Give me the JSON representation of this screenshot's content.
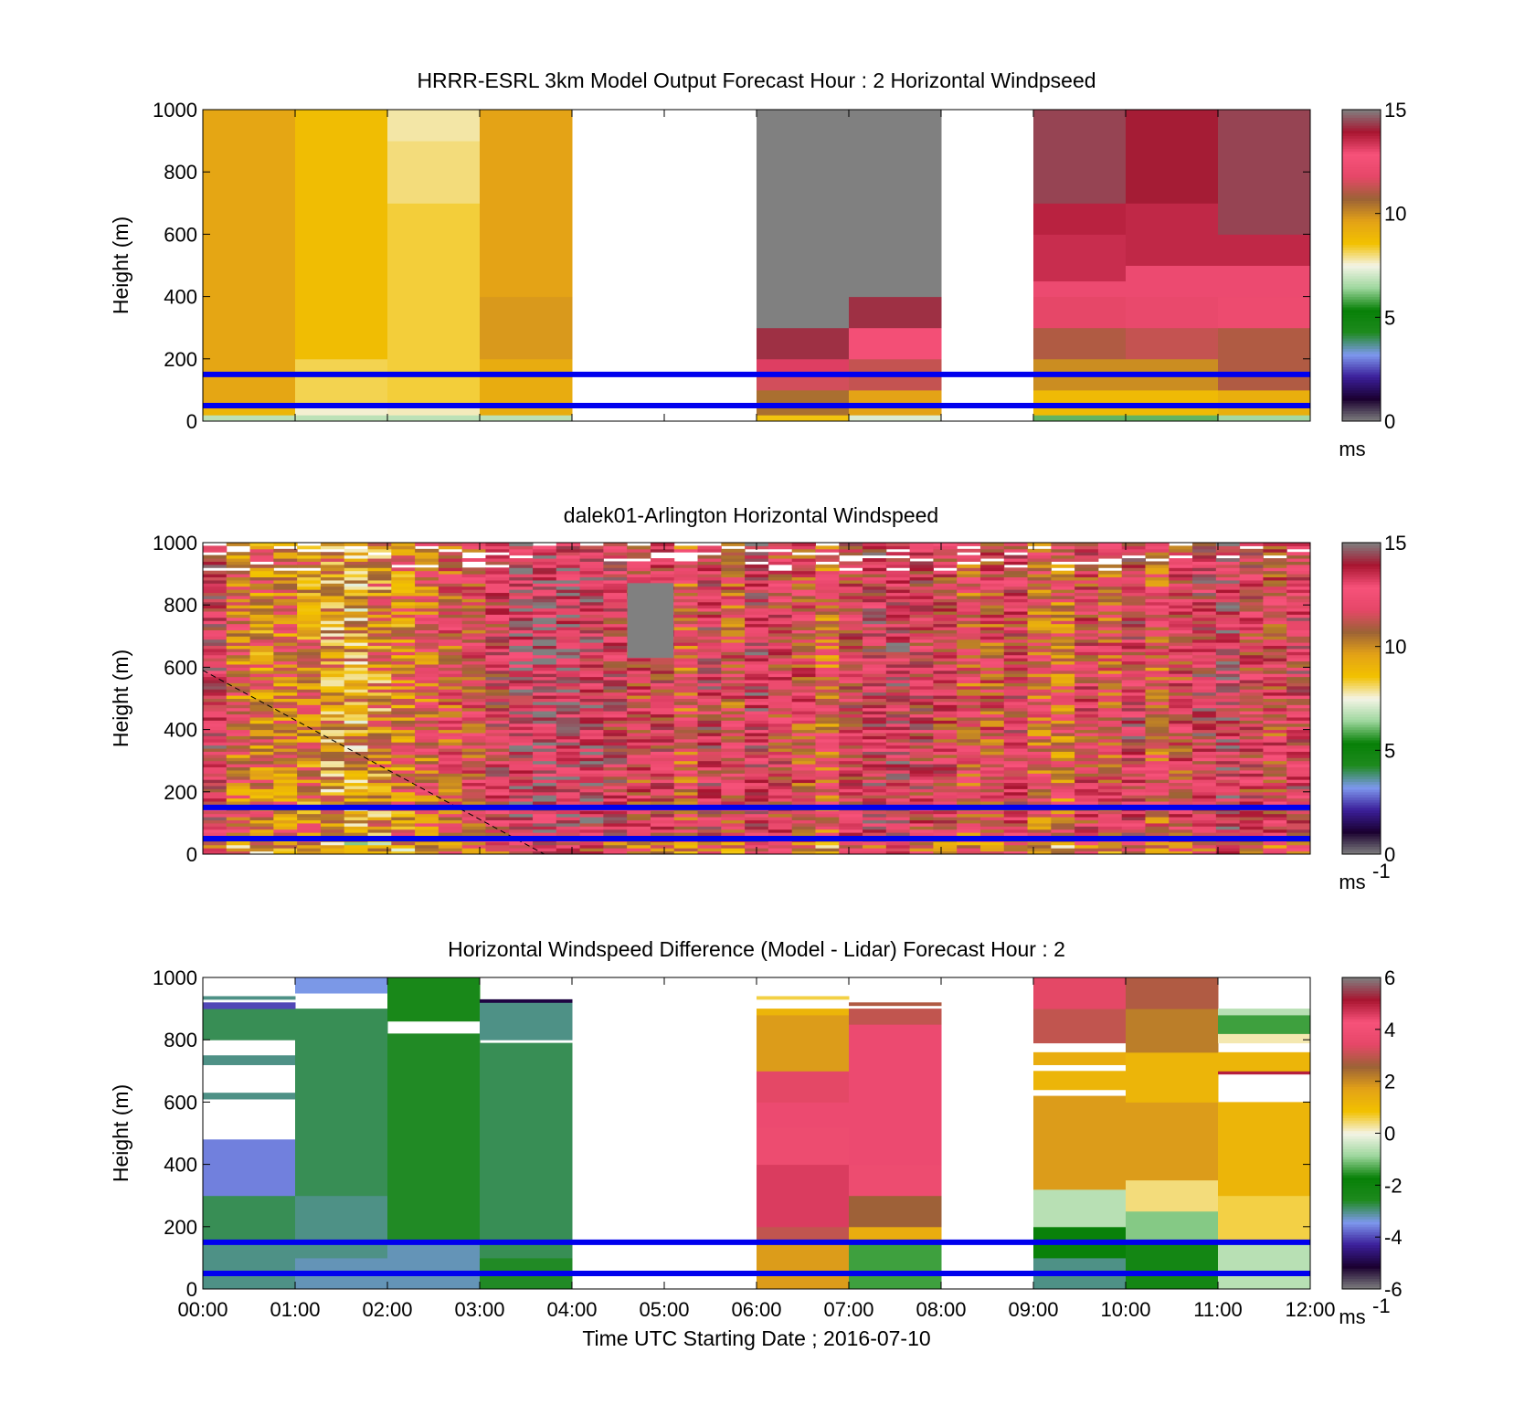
{
  "colors": {
    "overlay_line": "#0000ee",
    "masked_cell": "#808080",
    "background": "#ffffff",
    "scale_windspeed": [
      "#808080",
      "#1a0030",
      "#3b1f9a",
      "#7e98ee",
      "#1e8a1e",
      "#078007",
      "#9ed79e",
      "#f4f4e6",
      "#f2c100",
      "#e3a217",
      "#9c6236",
      "#e64768",
      "#f7527a",
      "#a81530",
      "#808080"
    ],
    "scale_difference": [
      "#808080",
      "#1a0030",
      "#3b1f9a",
      "#7e98ee",
      "#1e8a1e",
      "#078007",
      "#9ed79e",
      "#f4f4e6",
      "#f2c100",
      "#e3a217",
      "#9c6236",
      "#e64768",
      "#f7527a",
      "#a81530",
      "#808080"
    ]
  },
  "x_axis": {
    "ticks": [
      "00:00",
      "01:00",
      "02:00",
      "03:00",
      "04:00",
      "05:00",
      "06:00",
      "07:00",
      "08:00",
      "09:00",
      "10:00",
      "11:00",
      "12:00"
    ],
    "label": "Time UTC  Starting Date ; 2016-07-10"
  },
  "chart_data": [
    {
      "type": "heatmap",
      "title": "HRRR-ESRL 3km Model Output   Forecast Hour : 2 Horizontal Windpseed",
      "ylabel": "Height (m)",
      "ylim": [
        0,
        1000
      ],
      "yticks": [
        "0",
        "200",
        "400",
        "600",
        "800",
        "1000"
      ],
      "colorbar": {
        "ticks": [
          "0",
          "5",
          "10",
          "15"
        ],
        "range": [
          0,
          15
        ],
        "unit": "ms",
        "unit_sup": "",
        "scale": "windspeed"
      },
      "overlay_lines_height_m": [
        50,
        150
      ],
      "columns": [
        {
          "t_start": 0,
          "t_end": 1,
          "bands": [
            [
              0,
              20,
              6.8
            ],
            [
              20,
              40,
              9.0
            ],
            [
              40,
              1000,
              9.5
            ]
          ]
        },
        {
          "t_start": 1,
          "t_end": 2,
          "bands": [
            [
              0,
              20,
              6.8
            ],
            [
              20,
              60,
              7.6
            ],
            [
              60,
              200,
              8.2
            ],
            [
              200,
              1000,
              8.7
            ]
          ]
        },
        {
          "t_start": 2,
          "t_end": 3,
          "bands": [
            [
              0,
              20,
              6.8
            ],
            [
              20,
              60,
              7.7
            ],
            [
              60,
              700,
              8.3
            ],
            [
              700,
              900,
              8.0
            ],
            [
              900,
              1000,
              7.8
            ]
          ]
        },
        {
          "t_start": 3,
          "t_end": 4,
          "bands": [
            [
              0,
              20,
              6.8
            ],
            [
              20,
              200,
              9.3
            ],
            [
              200,
              400,
              9.8
            ],
            [
              400,
              1000,
              9.6
            ]
          ]
        },
        {
          "t_start": 6,
          "t_end": 7,
          "bands": [
            [
              0,
              20,
              8.5
            ],
            [
              20,
              100,
              10.5
            ],
            [
              100,
              150,
              11.5
            ],
            [
              150,
              200,
              13.2
            ],
            [
              200,
              300,
              14.2
            ],
            [
              300,
              1000,
              "masked"
            ]
          ]
        },
        {
          "t_start": 7,
          "t_end": 8,
          "bands": [
            [
              0,
              20,
              7.2
            ],
            [
              20,
              100,
              9.6
            ],
            [
              100,
              200,
              11.3
            ],
            [
              200,
              300,
              12.6
            ],
            [
              300,
              400,
              14.2
            ],
            [
              400,
              1000,
              "masked"
            ]
          ]
        },
        {
          "t_start": 9,
          "t_end": 10,
          "bands": [
            [
              0,
              20,
              6.0
            ],
            [
              20,
              100,
              8.8
            ],
            [
              100,
              200,
              10.0
            ],
            [
              200,
              300,
              11.0
            ],
            [
              300,
              400,
              11.8
            ],
            [
              400,
              450,
              13.0
            ],
            [
              450,
              600,
              13.5
            ],
            [
              600,
              700,
              13.7
            ],
            [
              700,
              1000,
              14.4
            ]
          ]
        },
        {
          "t_start": 10,
          "t_end": 11,
          "bands": [
            [
              0,
              20,
              6.0
            ],
            [
              20,
              100,
              8.8
            ],
            [
              100,
              200,
              10.0
            ],
            [
              200,
              300,
              11.3
            ],
            [
              300,
              400,
              12.0
            ],
            [
              400,
              500,
              13.0
            ],
            [
              500,
              700,
              13.6
            ],
            [
              700,
              1000,
              14.0
            ]
          ]
        },
        {
          "t_start": 11,
          "t_end": 12,
          "bands": [
            [
              0,
              20,
              6.5
            ],
            [
              20,
              100,
              9.2
            ],
            [
              100,
              300,
              11.0
            ],
            [
              300,
              400,
              12.2
            ],
            [
              400,
              500,
              13.0
            ],
            [
              500,
              600,
              13.6
            ],
            [
              600,
              1000,
              14.4
            ]
          ]
        }
      ]
    },
    {
      "type": "heatmap",
      "title": "dalek01-Arlington  Horizontal Windspeed",
      "ylabel": "Height (m)",
      "ylim": [
        0,
        1000
      ],
      "yticks": [
        "0",
        "200",
        "400",
        "600",
        "800",
        "1000"
      ],
      "colorbar": {
        "ticks": [
          "0",
          "5",
          "10",
          "15"
        ],
        "range": [
          0,
          15
        ],
        "unit": "ms",
        "unit_sup": "-1",
        "scale": "windspeed"
      },
      "overlay_lines_height_m": [
        50,
        150
      ],
      "dashed_line": {
        "from": [
          0,
          590
        ],
        "to": [
          3.7,
          0
        ]
      },
      "masked_region": {
        "t_start": 4.6,
        "t_end": 5.1,
        "h_start": 630,
        "h_end": 870
      },
      "columns_mean_speed": [
        12.8,
        10.8,
        10.5,
        10.6,
        10.2,
        9.6,
        9.2,
        9.8,
        10.4,
        11.0,
        11.6,
        11.8,
        12.6,
        13.4,
        13.8,
        13.6,
        13.2,
        12.6,
        12.0,
        12.4,
        11.4,
        12.8,
        11.6,
        13.2,
        12.2,
        11.8,
        11.0,
        12.4,
        12.8,
        13.0,
        12.6,
        12.2,
        11.4,
        11.8,
        12.4,
        11.2,
        10.8,
        12.2,
        11.6,
        12.8,
        11.4,
        12.0,
        12.8,
        13.2,
        12.4,
        12.0,
        12.6
      ]
    },
    {
      "type": "heatmap",
      "title": "Horizontal Windspeed Difference (Model - Lidar) Forecast Hour : 2",
      "ylabel": "Height (m)",
      "ylim": [
        0,
        1000
      ],
      "yticks": [
        "0",
        "200",
        "400",
        "600",
        "800",
        "1000"
      ],
      "colorbar": {
        "ticks": [
          "-6",
          "-4",
          "-2",
          "0",
          "2",
          "4",
          "6"
        ],
        "range": [
          -6,
          6
        ],
        "unit": "ms",
        "unit_sup": "-1",
        "scale": "difference"
      },
      "overlay_lines_height_m": [
        50,
        150
      ],
      "columns": [
        {
          "t_start": 0,
          "t_end": 1,
          "bands": [
            [
              0,
              150,
              -3.0
            ],
            [
              150,
              300,
              -2.8
            ],
            [
              300,
              480,
              -3.6
            ],
            [
              610,
              630,
              -3.0
            ],
            [
              720,
              750,
              -3.0
            ],
            [
              800,
              900,
              -2.8
            ],
            [
              900,
              920,
              -4.0
            ],
            [
              930,
              940,
              -3.0
            ]
          ]
        },
        {
          "t_start": 1,
          "t_end": 2,
          "bands": [
            [
              0,
              100,
              -3.2
            ],
            [
              100,
              300,
              -3.0
            ],
            [
              300,
              900,
              -2.8
            ],
            [
              950,
              1000,
              -3.4
            ]
          ]
        },
        {
          "t_start": 2,
          "t_end": 3,
          "bands": [
            [
              0,
              150,
              -3.2
            ],
            [
              150,
              820,
              -2.6
            ],
            [
              860,
              1000,
              -2.4
            ]
          ]
        },
        {
          "t_start": 3,
          "t_end": 4,
          "bands": [
            [
              0,
              100,
              -2.6
            ],
            [
              100,
              790,
              -2.8
            ],
            [
              800,
              920,
              -3.0
            ],
            [
              920,
              930,
              -5.0
            ]
          ]
        },
        {
          "t_start": 6,
          "t_end": 7,
          "bands": [
            [
              0,
              150,
              1.8
            ],
            [
              150,
              200,
              3.0
            ],
            [
              200,
              400,
              4.6
            ],
            [
              400,
              520,
              3.8
            ],
            [
              520,
              600,
              4.4
            ],
            [
              600,
              700,
              3.4
            ],
            [
              700,
              880,
              1.8
            ],
            [
              880,
              900,
              1.2
            ],
            [
              930,
              940,
              0.6
            ]
          ]
        },
        {
          "t_start": 7,
          "t_end": 8,
          "bands": [
            [
              0,
              150,
              -1.4
            ],
            [
              150,
              200,
              1.4
            ],
            [
              200,
              300,
              2.6
            ],
            [
              300,
              400,
              3.8
            ],
            [
              400,
              850,
              4.4
            ],
            [
              850,
              900,
              3.0
            ],
            [
              910,
              920,
              2.8
            ]
          ]
        },
        {
          "t_start": 9,
          "t_end": 10,
          "bands": [
            [
              0,
              100,
              -3.0
            ],
            [
              100,
              200,
              -1.8
            ],
            [
              200,
              320,
              -0.6
            ],
            [
              320,
              620,
              1.8
            ],
            [
              640,
              700,
              1.2
            ],
            [
              720,
              760,
              1.4
            ],
            [
              790,
              900,
              3.0
            ],
            [
              900,
              1000,
              3.4
            ]
          ]
        },
        {
          "t_start": 10,
          "t_end": 11,
          "bands": [
            [
              0,
              150,
              -2.2
            ],
            [
              150,
              250,
              -1.0
            ],
            [
              250,
              350,
              0.4
            ],
            [
              350,
              600,
              1.8
            ],
            [
              600,
              760,
              1.2
            ],
            [
              760,
              900,
              2.2
            ],
            [
              900,
              1000,
              2.8
            ]
          ]
        },
        {
          "t_start": 11,
          "t_end": 12,
          "bands": [
            [
              0,
              150,
              -0.6
            ],
            [
              150,
              300,
              0.6
            ],
            [
              300,
              600,
              1.2
            ],
            [
              690,
              700,
              5.0
            ],
            [
              700,
              760,
              1.2
            ],
            [
              790,
              820,
              0.2
            ],
            [
              820,
              880,
              -1.4
            ],
            [
              880,
              900,
              -0.6
            ]
          ]
        }
      ]
    }
  ]
}
